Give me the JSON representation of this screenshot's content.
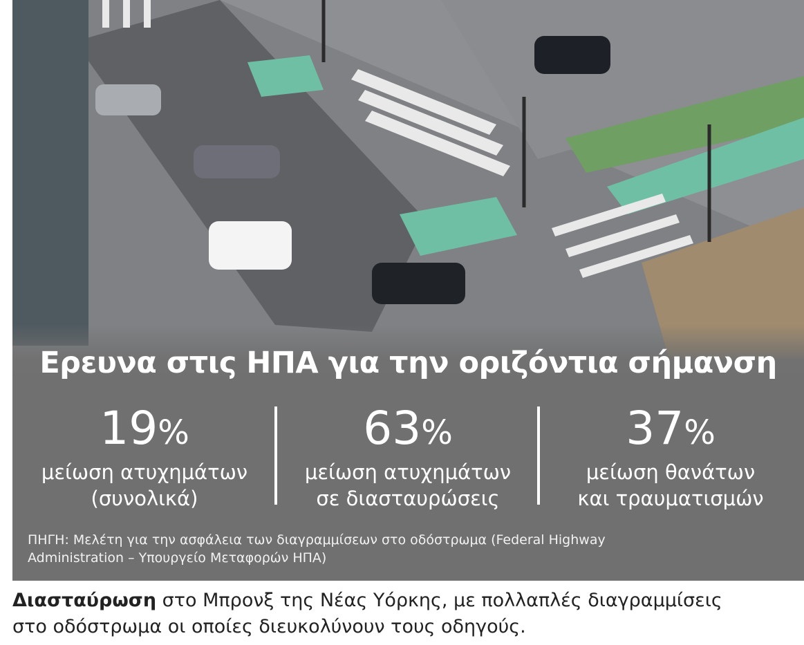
{
  "panel": {
    "title": "Ερευνα στις ΗΠΑ για την οριζόντια σήμανση",
    "stats": [
      {
        "number": "19",
        "unit": "%",
        "lines": [
          "μείωση ατυχημάτων",
          "(συνολικά)"
        ]
      },
      {
        "number": "63",
        "unit": "%",
        "lines": [
          "μείωση ατυχημάτων",
          "σε διασταυρώσεις"
        ]
      },
      {
        "number": "37",
        "unit": "%",
        "lines": [
          "μείωση θανάτων",
          "και τραυματισμών"
        ]
      }
    ],
    "source": [
      "ΠΗΓΗ: Μελέτη για την ασφάλεια των διαγραμμίσεων στο οδόστρωμα (Federal Highway",
      "Administration – Υπουργείο Μεταφορών ΗΠΑ)"
    ]
  },
  "caption": {
    "lead": "Διασταύρωση",
    "line1": "στο Μπρονξ της Νέας Υόρκης, με πολλαπλές διαγραμμίσεις",
    "line2": "στο οδόστρωμα οι οποίες διευκολύνουν τους οδηγούς."
  }
}
